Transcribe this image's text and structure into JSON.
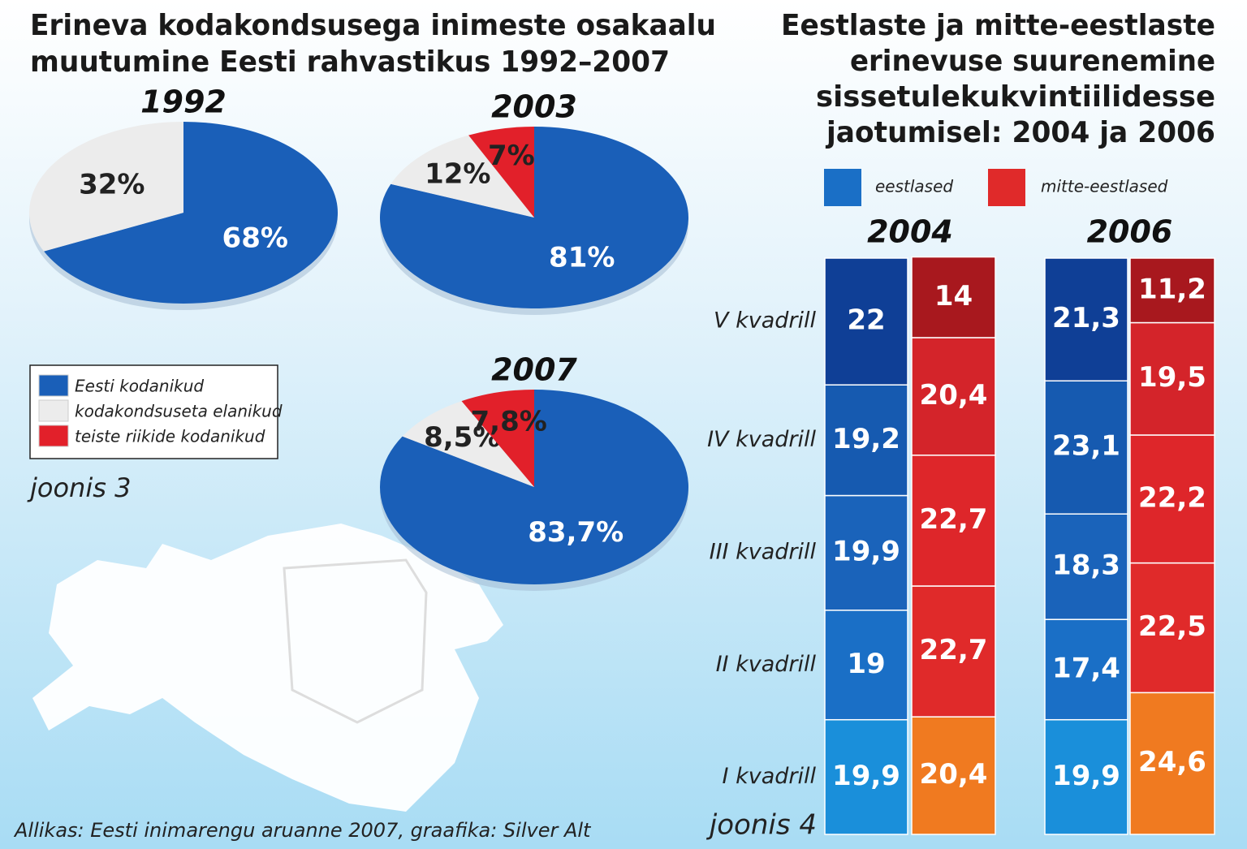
{
  "chart_data": [
    {
      "type": "pie",
      "title": [
        "Erineva kodakondsusega inimeste osakaalu",
        "muutumine Eesti rahvastikus 1992–2007"
      ],
      "categories": [
        "Eesti kodanikud",
        "kodakondsuseta elanikud",
        "teiste riikide kodanikud"
      ],
      "colors": [
        "#1a5fb8",
        "#ececec",
        "#e2202a"
      ],
      "pies": [
        {
          "name": "1992",
          "values": [
            68,
            32,
            null
          ],
          "value_labels": [
            "68%",
            "32%",
            null
          ]
        },
        {
          "name": "2003",
          "values": [
            81,
            12,
            7
          ],
          "value_labels": [
            "81%",
            "12%",
            "7%"
          ]
        },
        {
          "name": "2007",
          "values": [
            83.7,
            8.5,
            7.8
          ],
          "value_labels": [
            "83,7%",
            "8,5%",
            "7,8%"
          ]
        }
      ],
      "note": "joonis 3",
      "source": "Allikas: Eesti inimarengu aruanne 2007, graafika: Silver Alt"
    },
    {
      "type": "stacked-column",
      "title": [
        "Eestlaste ja mitte-eestlaste",
        "erinevuse suurenemine",
        "sissetulekukvintiilidesse",
        "jaotumisel: 2004 ja 2006"
      ],
      "legend": [
        "eestlased",
        "mitte-eestlased"
      ],
      "colors": [
        [
          "#1a8fda",
          "#1a6fc6",
          "#1a63ba",
          "#165ab0",
          "#0f3f96"
        ],
        [
          "#f07a20",
          "#e02a2a",
          "#de262a",
          "#d4242a",
          "#a8181e"
        ]
      ],
      "categories": [
        "I kvadrill",
        "II kvadrill",
        "III kvadrill",
        "IV kvadrill",
        "V kvadrill"
      ],
      "groups": [
        {
          "name": "2004",
          "series": [
            {
              "values": [
                19.9,
                19,
                19.9,
                19.2,
                22
              ],
              "value_labels": [
                "19,9",
                "19",
                "19,9",
                "19,2",
                "22"
              ]
            },
            {
              "values": [
                20.4,
                22.7,
                22.7,
                20.4,
                14
              ],
              "value_labels": [
                "20,4",
                "22,7",
                "22,7",
                "20,4",
                "14"
              ]
            }
          ]
        },
        {
          "name": "2006",
          "series": [
            {
              "values": [
                19.9,
                17.4,
                18.3,
                23.1,
                21.3
              ],
              "value_labels": [
                "19,9",
                "17,4",
                "18,3",
                "23,1",
                "21,3"
              ]
            },
            {
              "values": [
                24.6,
                22.5,
                22.2,
                19.5,
                11.2
              ],
              "value_labels": [
                "24,6",
                "22,5",
                "22,2",
                "19,5",
                "11,2"
              ]
            }
          ]
        }
      ],
      "note": "joonis 4"
    }
  ]
}
